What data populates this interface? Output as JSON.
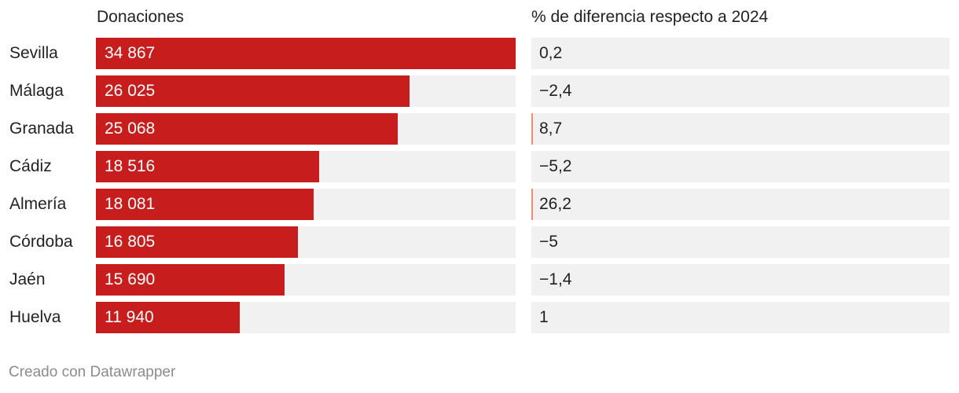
{
  "chart_data": {
    "type": "table",
    "columns": [
      "Donaciones",
      "% de diferencia respecto a 2024"
    ],
    "rows": [
      {
        "province": "Sevilla",
        "donations": 34867,
        "donations_label": "34 867",
        "pct": 0.2,
        "pct_label": "0,2"
      },
      {
        "province": "Málaga",
        "donations": 26025,
        "donations_label": "26 025",
        "pct": -2.4,
        "pct_label": "−2,4"
      },
      {
        "province": "Granada",
        "donations": 25068,
        "donations_label": "25 068",
        "pct": 8.7,
        "pct_label": "8,7"
      },
      {
        "province": "Cádiz",
        "donations": 18516,
        "donations_label": "18 516",
        "pct": -5.2,
        "pct_label": "−5,2"
      },
      {
        "province": "Almería",
        "donations": 18081,
        "donations_label": "18 081",
        "pct": 26.2,
        "pct_label": "26,2"
      },
      {
        "province": "Córdoba",
        "donations": 16805,
        "donations_label": "16 805",
        "pct": -5,
        "pct_label": "−5"
      },
      {
        "province": "Jaén",
        "donations": 15690,
        "donations_label": "15 690",
        "pct": -1.4,
        "pct_label": "−1,4"
      },
      {
        "province": "Huelva",
        "donations": 11940,
        "donations_label": "11 940",
        "pct": 1,
        "pct_label": "1"
      }
    ],
    "donations_max": 34867
  },
  "footer": "Creado con Datawrapper",
  "colors": {
    "bar": "#c71e1d",
    "positive_tick": "#f08e6e",
    "track": "#f1f1f1"
  }
}
